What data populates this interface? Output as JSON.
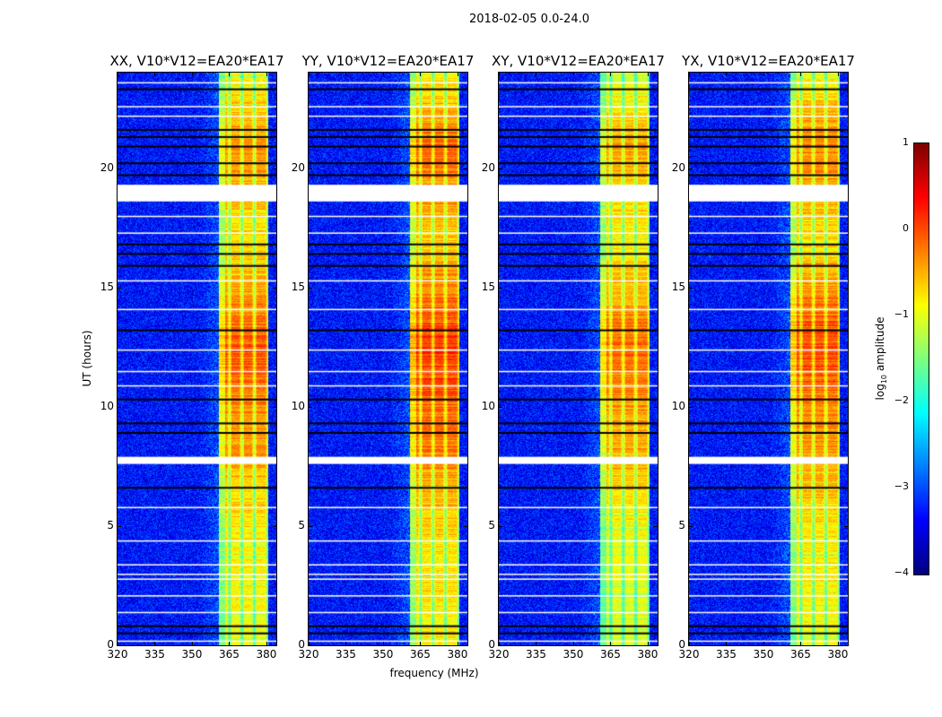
{
  "chart_data": {
    "type": "heatmap",
    "suptitle": "2018-02-05 0.0-24.0",
    "xlabel": "frequency (MHz)",
    "ylabel": "UT (hours)",
    "xlim": [
      320,
      384
    ],
    "ylim": [
      0,
      24
    ],
    "xticks": [
      "320",
      "335",
      "350",
      "365",
      "380"
    ],
    "xtick_values": [
      320,
      335,
      350,
      365,
      380
    ],
    "yticks": [
      "0",
      "5",
      "10",
      "15",
      "20"
    ],
    "ytick_values": [
      0,
      5,
      10,
      15,
      20
    ],
    "panels": [
      {
        "title": "XX, V10*V12=EA20*EA17",
        "band_offset": 0
      },
      {
        "title": "YY, V10*V12=EA20*EA17",
        "band_offset": 0.15
      },
      {
        "title": "XY, V10*V12=EA20*EA17",
        "band_offset": -0.1
      },
      {
        "title": "YX, V10*V12=EA20*EA17",
        "band_offset": 0.05
      }
    ],
    "background_log_amplitude": -3.3,
    "rfi_band_mhz": [
      360.5,
      380.5
    ],
    "rfi_subchannel_gaps_mhz": [
      365,
      370,
      375,
      380.5
    ],
    "rfi_band_log_amplitude_by_hour": [
      [
        0,
        -1.0
      ],
      [
        4,
        -0.9
      ],
      [
        6,
        -0.7
      ],
      [
        8,
        -0.4
      ],
      [
        10,
        -0.3
      ],
      [
        12,
        -0.05
      ],
      [
        13,
        -0.05
      ],
      [
        15,
        -0.4
      ],
      [
        17,
        -0.8
      ],
      [
        19,
        -0.5
      ],
      [
        21,
        -0.3
      ],
      [
        24,
        -1.0
      ]
    ],
    "flagged_hours_white": [
      [
        18.6,
        19.3
      ],
      [
        7.6,
        7.9
      ]
    ],
    "dark_rows_hours": [
      0.5,
      0.8,
      6.6,
      8.9,
      9.3,
      10.3,
      13.2,
      15.9,
      16.4,
      16.8,
      19.7,
      20.2,
      20.9,
      21.3,
      21.6,
      23.3
    ],
    "white_rows_hours": [
      0.2,
      1.4,
      2.1,
      2.8,
      3.0,
      3.4,
      4.4,
      5.8,
      10.9,
      11.5,
      12.4,
      14.1,
      15.3,
      17.3,
      18.0,
      22.2,
      22.6,
      23.6
    ],
    "colorbar": {
      "label": "log10 amplitude",
      "label_main": "log",
      "label_sub": "10",
      "label_rest": " amplitude",
      "colormap": "jet",
      "range": [
        -4,
        1
      ],
      "ticks": [
        "1",
        "0",
        "−1",
        "−2",
        "−3",
        "−4"
      ],
      "tick_values": [
        1,
        0,
        -1,
        -2,
        -3,
        -4
      ]
    }
  }
}
